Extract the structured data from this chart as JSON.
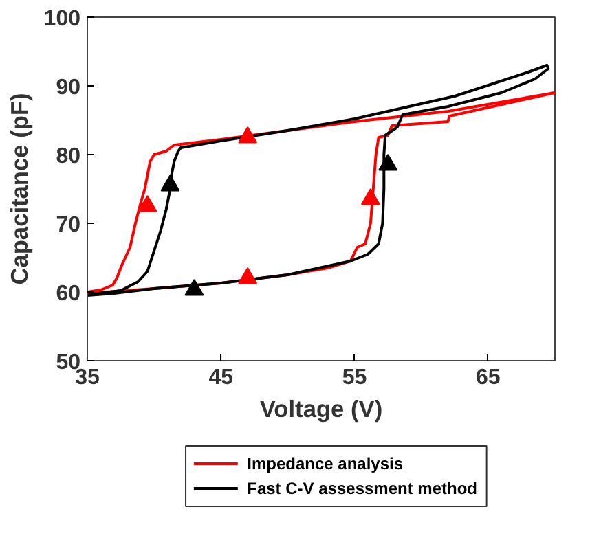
{
  "chart_data": {
    "type": "line",
    "xlabel": "Voltage (V)",
    "ylabel": "Capacitance (pF)",
    "xlim": [
      35,
      70
    ],
    "ylim": [
      50,
      100
    ],
    "xticks": [
      35,
      45,
      55,
      65
    ],
    "yticks": [
      50,
      60,
      70,
      80,
      90,
      100
    ],
    "grid": false,
    "legend": "bottom",
    "line_style": "solid",
    "series": [
      {
        "name": "Impedance analysis",
        "color": "#ff0000",
        "x": [
          35,
          40,
          45,
          50,
          53,
          54.7,
          55.2,
          55.8,
          56.2,
          56.4,
          56.6,
          56.8,
          57.5,
          57.8,
          62,
          62.1,
          70,
          62,
          55,
          50,
          45,
          41.5,
          40.9,
          40,
          39.7,
          39.5,
          39.3,
          39.0,
          38.6,
          38.2,
          37.6,
          37.2,
          36.9,
          36,
          35
        ],
        "values": [
          59.8,
          60.5,
          61.3,
          62.5,
          63.5,
          64.5,
          66.5,
          67,
          70,
          75,
          80,
          82.5,
          82.8,
          84.2,
          84.8,
          85.6,
          89,
          86.3,
          84.8,
          83.5,
          82.2,
          81.4,
          80.5,
          80,
          79,
          77,
          75,
          73,
          70,
          66.5,
          64,
          62,
          61,
          60.3,
          60
        ]
      },
      {
        "name": "Fast C-V assessment method",
        "color": "#000000",
        "x": [
          35,
          37,
          40,
          45,
          50,
          54.7,
          56,
          56.8,
          57.1,
          57.2,
          57.2,
          57.3,
          58.2,
          58.6,
          62,
          66,
          68.5,
          69.5,
          69.4,
          68,
          62.5,
          55,
          50,
          45,
          42,
          41.8,
          41.5,
          41.3,
          41.2,
          40.9,
          40.5,
          40,
          39.5,
          38.8,
          37.5,
          35
        ],
        "values": [
          59.5,
          59.8,
          60.5,
          61.3,
          62.5,
          64.5,
          65.5,
          67,
          70,
          75,
          80,
          82.8,
          84,
          85.8,
          87,
          89,
          91,
          92.5,
          93,
          92,
          88.5,
          85.2,
          83.5,
          82,
          81,
          80.5,
          79,
          77,
          75,
          72,
          69,
          66,
          63,
          61.5,
          60.2,
          59.6
        ]
      },
      {
        "type": "scatter",
        "marker": "triangle",
        "color": "#ff0000",
        "x": [
          47,
          47,
          39.5,
          56.2
        ],
        "values": [
          62,
          82.5,
          72.5,
          73.5
        ]
      },
      {
        "type": "scatter",
        "marker": "triangle",
        "color": "#000000",
        "x": [
          43,
          41.2,
          57.5
        ],
        "values": [
          60.3,
          75.5,
          78.5
        ]
      }
    ]
  }
}
